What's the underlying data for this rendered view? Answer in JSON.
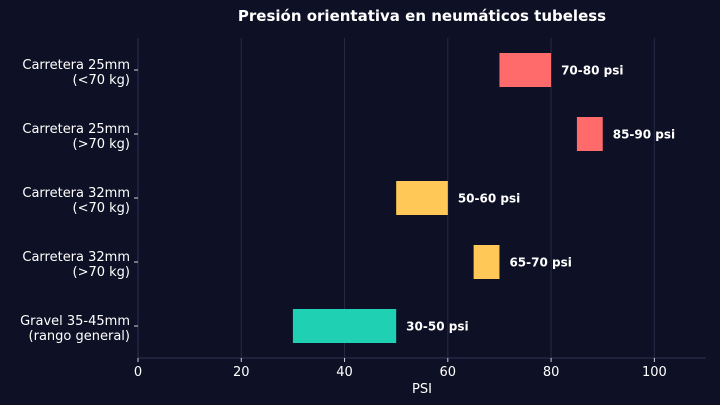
{
  "chart_data": {
    "type": "bar",
    "orientation": "horizontal",
    "chart_style": "floating-range",
    "title": "Presión orientativa en neumáticos tubeless",
    "xlabel": "PSI",
    "ylabel": "",
    "xlim": [
      0,
      110
    ],
    "xticks": [
      0,
      20,
      40,
      60,
      80,
      100
    ],
    "grid": "vertical",
    "legend": "none",
    "background_color": "#0e1126",
    "categories": [
      {
        "line1": "Carretera 25mm",
        "line2": "(<70 kg)",
        "start": 70,
        "end": 80,
        "label": "70-80 psi",
        "color": "#ff6b6b"
      },
      {
        "line1": "Carretera 25mm",
        "line2": "(>70 kg)",
        "start": 85,
        "end": 90,
        "label": "85-90 psi",
        "color": "#ff6b6b"
      },
      {
        "line1": "Carretera 32mm",
        "line2": "(<70 kg)",
        "start": 50,
        "end": 60,
        "label": "50-60 psi",
        "color": "#ffc857"
      },
      {
        "line1": "Carretera 32mm",
        "line2": "(>70 kg)",
        "start": 65,
        "end": 70,
        "label": "65-70 psi",
        "color": "#ffc857"
      },
      {
        "line1": "Gravel 35-45mm",
        "line2": "(rango general)",
        "start": 30,
        "end": 50,
        "label": "30-50 psi",
        "color": "#1fd1b2"
      }
    ]
  }
}
